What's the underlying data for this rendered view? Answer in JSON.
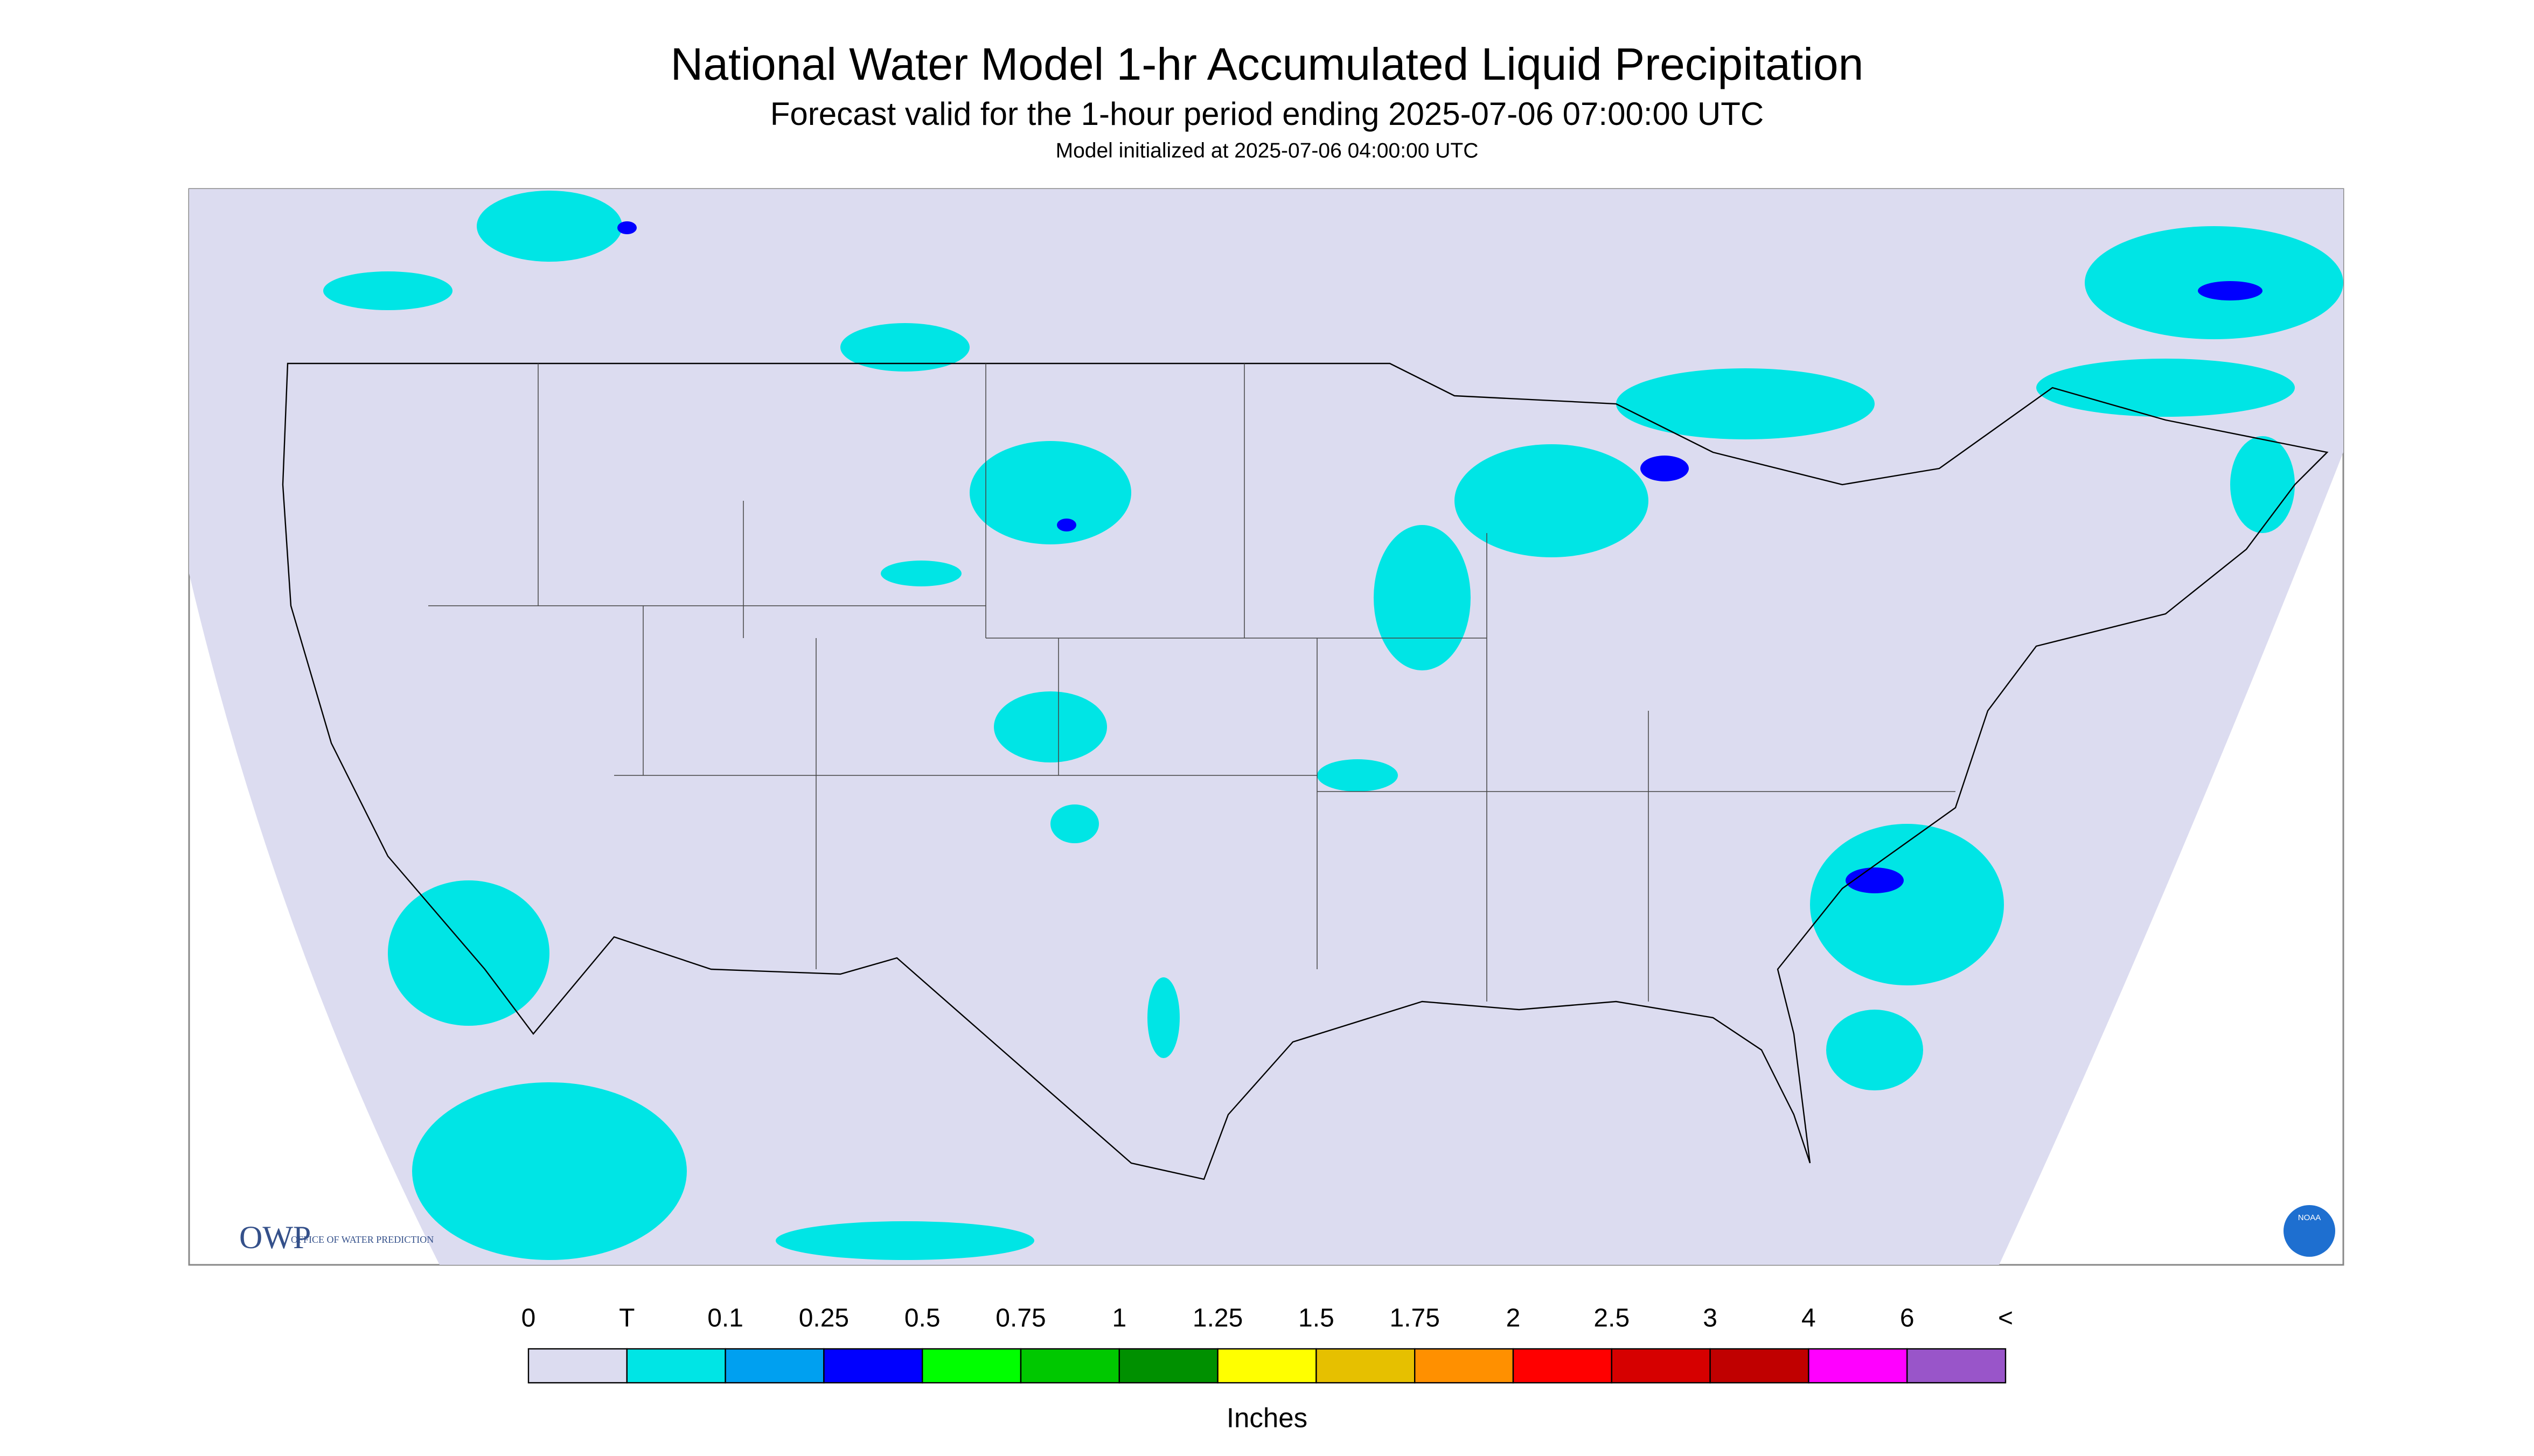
{
  "header": {
    "title": "National Water Model 1-hr Accumulated Liquid Precipitation",
    "subtitle": "Forecast valid for the 1-hour period ending 2025-07-06 07:00:00 UTC",
    "init": "Model initialized at 2025-07-06 04:00:00 UTC"
  },
  "legend": {
    "labels": [
      "0",
      "T",
      "0.1",
      "0.25",
      "0.5",
      "0.75",
      "1",
      "1.25",
      "1.5",
      "1.75",
      "2",
      "2.5",
      "3",
      "4",
      "6",
      "<"
    ],
    "colors": [
      "#dcdcf0",
      "#00e5e5",
      "#00a0f0",
      "#0000ff",
      "#00ff00",
      "#00c800",
      "#009000",
      "#ffff00",
      "#e6c000",
      "#ff9000",
      "#ff0000",
      "#d60000",
      "#c00000",
      "#ff00ff",
      "#9955c9"
    ],
    "unit": "Inches"
  },
  "logo": {
    "owp": "OWP",
    "owp_text": "OFFICE OF WATER PREDICTION",
    "noaa": "NOAA"
  }
}
